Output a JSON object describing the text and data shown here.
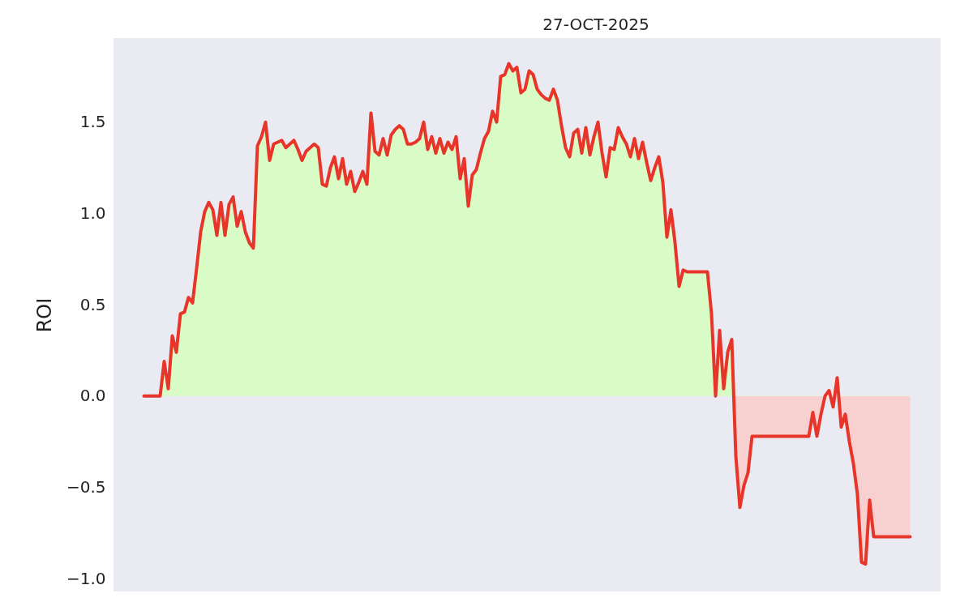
{
  "chart_data": {
    "type": "area",
    "title": "27-OCT-2025",
    "ylabel": "ROI",
    "categories": [
      null,
      null,
      null,
      null,
      null,
      null,
      null,
      null,
      null,
      null,
      null,
      null,
      null,
      null,
      null,
      null,
      null,
      null,
      null,
      null,
      null,
      null,
      null,
      null,
      null,
      null,
      null,
      null,
      null,
      null,
      null,
      null,
      null,
      null,
      null,
      null,
      null,
      null,
      null,
      null,
      null,
      null,
      null,
      null,
      null,
      null,
      null,
      null,
      null,
      null,
      null,
      null,
      null,
      null,
      null,
      null,
      null,
      null,
      null,
      null,
      null,
      null,
      null,
      null,
      null,
      null,
      null,
      null,
      null,
      null,
      null,
      null,
      null,
      null,
      null,
      null,
      null,
      null,
      null,
      null,
      null,
      null,
      null,
      null,
      null,
      null,
      null,
      null,
      null,
      null,
      null,
      null,
      null,
      null,
      null,
      null,
      null,
      null,
      null,
      null,
      null,
      null,
      null,
      null,
      null,
      null,
      null,
      null,
      null,
      null,
      null,
      null,
      null,
      null,
      null,
      null,
      null,
      null,
      null,
      null,
      null,
      null,
      null,
      null,
      null,
      null,
      null,
      null,
      null,
      null,
      null,
      null,
      null,
      null,
      null,
      null,
      null,
      null,
      null,
      null,
      null,
      null,
      null,
      null,
      null,
      null,
      null,
      null,
      null,
      null,
      null,
      null,
      null,
      null,
      null,
      null,
      null,
      null,
      null,
      null,
      null,
      null,
      null,
      null,
      null,
      null,
      null,
      null,
      null,
      null,
      null,
      null,
      null,
      null,
      null,
      null,
      null,
      null,
      null,
      null,
      null,
      null,
      null,
      null,
      null,
      null,
      null,
      null,
      null,
      null
    ],
    "values": [
      0,
      0,
      0,
      0,
      0,
      0.19,
      0.04,
      0.33,
      0.24,
      0.45,
      0.46,
      0.54,
      0.51,
      0.7,
      0.9,
      1.01,
      1.06,
      1.02,
      0.88,
      1.06,
      0.88,
      1.05,
      1.09,
      0.93,
      1.01,
      0.9,
      0.84,
      0.81,
      1.37,
      1.42,
      1.5,
      1.29,
      1.38,
      1.39,
      1.4,
      1.36,
      1.38,
      1.4,
      1.35,
      1.29,
      1.34,
      1.36,
      1.38,
      1.36,
      1.16,
      1.15,
      1.25,
      1.31,
      1.19,
      1.3,
      1.16,
      1.23,
      1.12,
      1.17,
      1.23,
      1.16,
      1.55,
      1.34,
      1.32,
      1.41,
      1.32,
      1.43,
      1.46,
      1.48,
      1.46,
      1.38,
      1.38,
      1.39,
      1.41,
      1.5,
      1.35,
      1.42,
      1.33,
      1.41,
      1.33,
      1.39,
      1.35,
      1.42,
      1.19,
      1.3,
      1.04,
      1.21,
      1.24,
      1.33,
      1.41,
      1.45,
      1.56,
      1.5,
      1.75,
      1.76,
      1.82,
      1.78,
      1.8,
      1.66,
      1.68,
      1.78,
      1.76,
      1.68,
      1.65,
      1.63,
      1.62,
      1.68,
      1.62,
      1.48,
      1.36,
      1.31,
      1.44,
      1.46,
      1.33,
      1.47,
      1.32,
      1.42,
      1.5,
      1.33,
      1.2,
      1.36,
      1.35,
      1.47,
      1.42,
      1.38,
      1.31,
      1.41,
      1.3,
      1.39,
      1.28,
      1.18,
      1.25,
      1.31,
      1.17,
      0.87,
      1.02,
      0.84,
      0.6,
      0.69,
      0.68,
      0.68,
      0.68,
      0.68,
      0.68,
      0.68,
      0.45,
      0.0,
      0.36,
      0.04,
      0.24,
      0.31,
      -0.33,
      -0.61,
      -0.49,
      -0.42,
      -0.22,
      -0.22,
      -0.22,
      -0.22,
      -0.22,
      -0.22,
      -0.22,
      -0.22,
      -0.22,
      -0.22,
      -0.22,
      -0.22,
      -0.22,
      -0.22,
      -0.22,
      -0.09,
      -0.22,
      -0.1,
      0.0,
      0.03,
      -0.06,
      0.1,
      -0.17,
      -0.1,
      -0.25,
      -0.37,
      -0.54,
      -0.91,
      -0.92,
      -0.57,
      -0.77,
      -0.77,
      -0.77,
      -0.77,
      -0.77,
      -0.77,
      -0.77,
      -0.77,
      -0.77,
      -0.77
    ],
    "color": "#e8352a",
    "ylim": [
      -1.07,
      1.96
    ],
    "yticks": [
      {
        "value": -1.0,
        "label": "−1.0"
      },
      {
        "value": -0.5,
        "label": "−0.5"
      },
      {
        "value": 0.0,
        "label": "0.0"
      },
      {
        "value": 0.5,
        "label": "0.5"
      },
      {
        "value": 1.0,
        "label": "1.0"
      },
      {
        "value": 1.5,
        "label": "1.5"
      }
    ]
  }
}
